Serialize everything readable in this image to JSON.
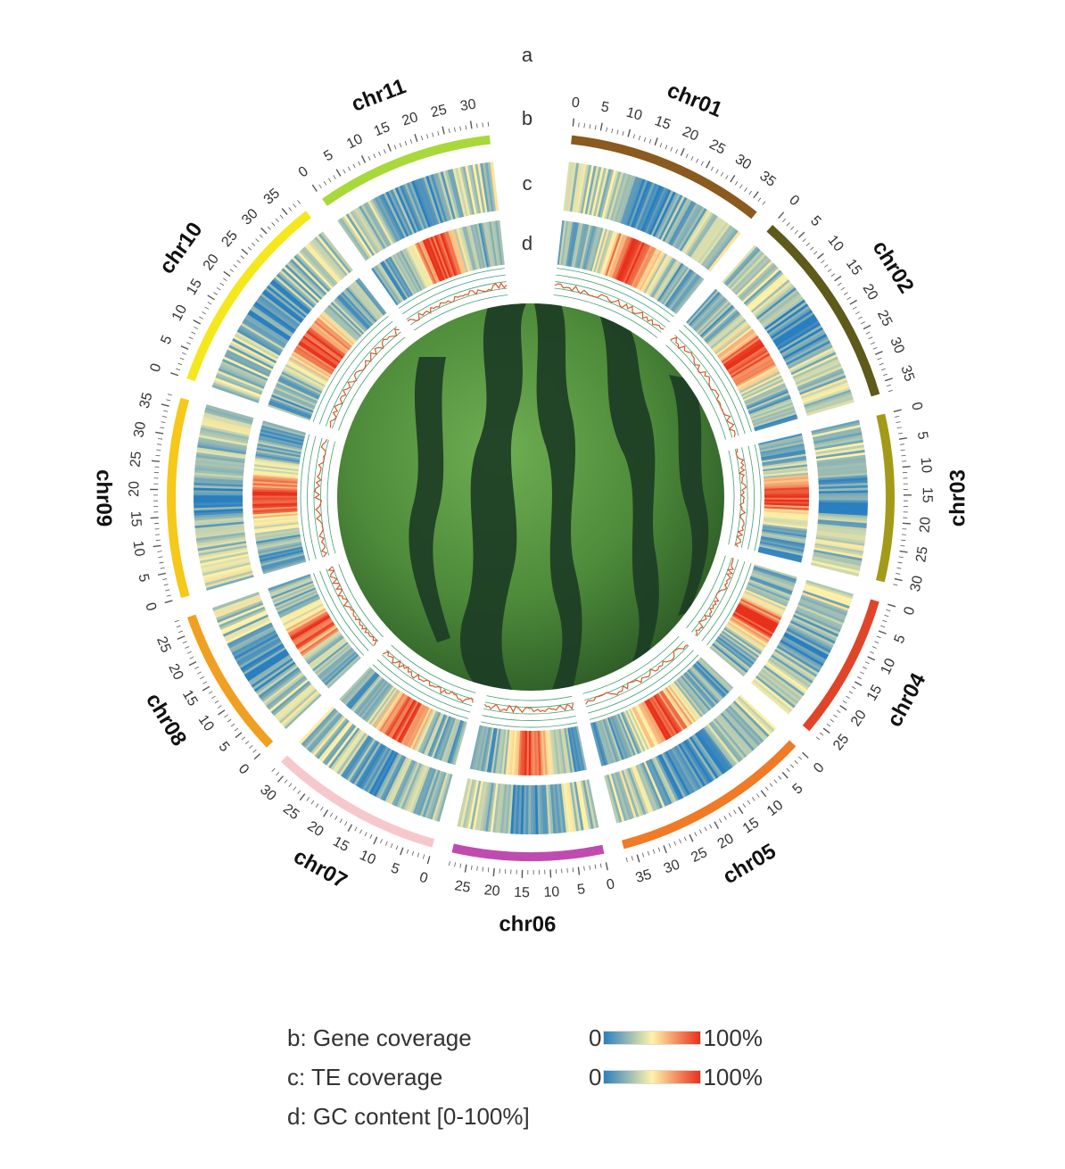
{
  "track_letters": [
    "a",
    "b",
    "c",
    "d"
  ],
  "chromosomes": [
    {
      "name": "chr01",
      "length": 37,
      "ticks": [
        0,
        5,
        10,
        15,
        20,
        25,
        30,
        35
      ],
      "color": "#8a5a1e"
    },
    {
      "name": "chr02",
      "length": 37,
      "ticks": [
        0,
        5,
        10,
        15,
        20,
        25,
        30,
        35
      ],
      "color": "#5d5a1a"
    },
    {
      "name": "chr03",
      "length": 31,
      "ticks": [
        0,
        5,
        10,
        15,
        20,
        25,
        30
      ],
      "color": "#a39a1a"
    },
    {
      "name": "chr04",
      "length": 27,
      "ticks": [
        0,
        5,
        10,
        15,
        20,
        25
      ],
      "color": "#e0452a"
    },
    {
      "name": "chr05",
      "length": 37,
      "ticks": [
        0,
        5,
        10,
        15,
        20,
        25,
        30,
        35
      ],
      "color": "#f07a25"
    },
    {
      "name": "chr06",
      "length": 28,
      "ticks": [
        0,
        5,
        10,
        15,
        20,
        25
      ],
      "color": "#c04bb0"
    },
    {
      "name": "chr07",
      "length": 32,
      "ticks": [
        0,
        5,
        10,
        15,
        20,
        25,
        30
      ],
      "color": "#f6c8cc"
    },
    {
      "name": "chr08",
      "length": 28,
      "ticks": [
        0,
        5,
        10,
        15,
        20,
        25
      ],
      "color": "#f0a020"
    },
    {
      "name": "chr09",
      "length": 37,
      "ticks": [
        0,
        5,
        10,
        15,
        20,
        25,
        30,
        35
      ],
      "color": "#f5c81a"
    },
    {
      "name": "chr10",
      "length": 38,
      "ticks": [
        0,
        5,
        10,
        15,
        20,
        25,
        30,
        35
      ],
      "color": "#f4e81c"
    },
    {
      "name": "chr11",
      "length": 33,
      "ticks": [
        0,
        5,
        10,
        15,
        20,
        25,
        30
      ],
      "color": "#a8d83a"
    }
  ],
  "legend": {
    "gene": {
      "label": "b: Gene coverage",
      "min": "0",
      "max": "100%"
    },
    "te": {
      "label": "c: TE coverage",
      "min": "0",
      "max": "100%"
    },
    "gc": {
      "label": "d: GC content  [0-100%]"
    }
  },
  "colors": {
    "heat_low": "#2a7fc0",
    "heat_mid": "#fff2a8",
    "heat_high": "#e8301c",
    "gc_line": "#d65a2a",
    "gc_grid": "#3f9f6e",
    "melon_dark": "#1d3d25",
    "melon_light": "#5e9a44"
  },
  "center_image": "watermelon"
}
